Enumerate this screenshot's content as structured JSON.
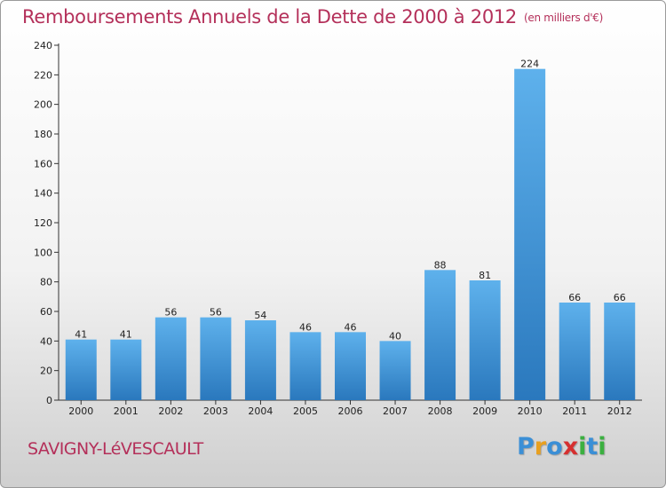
{
  "header": {
    "title": "Remboursements Annuels de la Dette de 2000 à 2012",
    "unit": "(en milliers d'€)"
  },
  "footer": {
    "city": "SAVIGNY-LéVESCAULT",
    "logo": {
      "letters": [
        "P",
        "r",
        "o",
        "x",
        "i",
        "t",
        "i"
      ],
      "colors": [
        "#3b8fd6",
        "#e8a020",
        "#3b8fd6",
        "#d63030",
        "#3bb040",
        "#3b8fd6",
        "#3bb040"
      ]
    }
  },
  "colors": {
    "bar_light": "#5eb1ec",
    "bar_dark": "#2a78bd",
    "axis": "#333333",
    "title": "#b4305a"
  },
  "chart_data": {
    "type": "bar",
    "title": "Remboursements Annuels de la Dette de 2000 à 2012",
    "xlabel": "",
    "ylabel": "",
    "categories": [
      "2000",
      "2001",
      "2002",
      "2003",
      "2004",
      "2005",
      "2006",
      "2007",
      "2008",
      "2009",
      "2010",
      "2011",
      "2012"
    ],
    "values": [
      41,
      41,
      56,
      56,
      54,
      46,
      46,
      40,
      88,
      81,
      224,
      66,
      66
    ],
    "ylim": [
      0,
      240
    ],
    "yticks": [
      0,
      20,
      40,
      60,
      80,
      100,
      120,
      140,
      160,
      180,
      200,
      220,
      240
    ],
    "grid": false,
    "legend": "none"
  }
}
